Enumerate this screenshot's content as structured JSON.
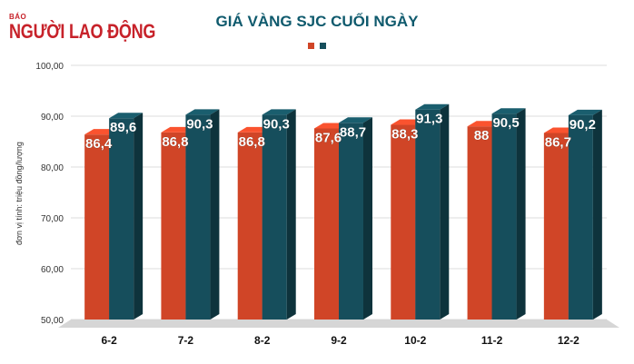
{
  "logo": {
    "small_text": "BÁO",
    "main_text": "NGƯỜI LAO ĐỘNG"
  },
  "chart_data": {
    "type": "bar",
    "title": "GIÁ VÀNG SJC CUỐI NGÀY",
    "ylabel": "đơn vị tính: triệu đồng/lượng",
    "xlabel": "",
    "categories": [
      "6-2",
      "7-2",
      "8-2",
      "9-2",
      "10-2",
      "11-2",
      "12-2"
    ],
    "series": [
      {
        "color": "#d04527",
        "values": [
          86.4,
          86.8,
          86.8,
          87.6,
          88.3,
          88,
          86.7
        ],
        "labels": [
          "86,4",
          "86,8",
          "86,8",
          "87,6",
          "88,3",
          "88",
          "86,7"
        ]
      },
      {
        "color": "#164e5c",
        "values": [
          89.6,
          90.3,
          90.3,
          88.7,
          91.3,
          90.5,
          90.2
        ],
        "labels": [
          "89,6",
          "90,3",
          "90,3",
          "88,7",
          "91,3",
          "90,5",
          "90,2"
        ]
      }
    ],
    "ylim": [
      50,
      100
    ],
    "yticks": [
      "50,00",
      "60,00",
      "70,00",
      "80,00",
      "90,00",
      "100,00"
    ],
    "grid": true,
    "legend": "top-center"
  }
}
